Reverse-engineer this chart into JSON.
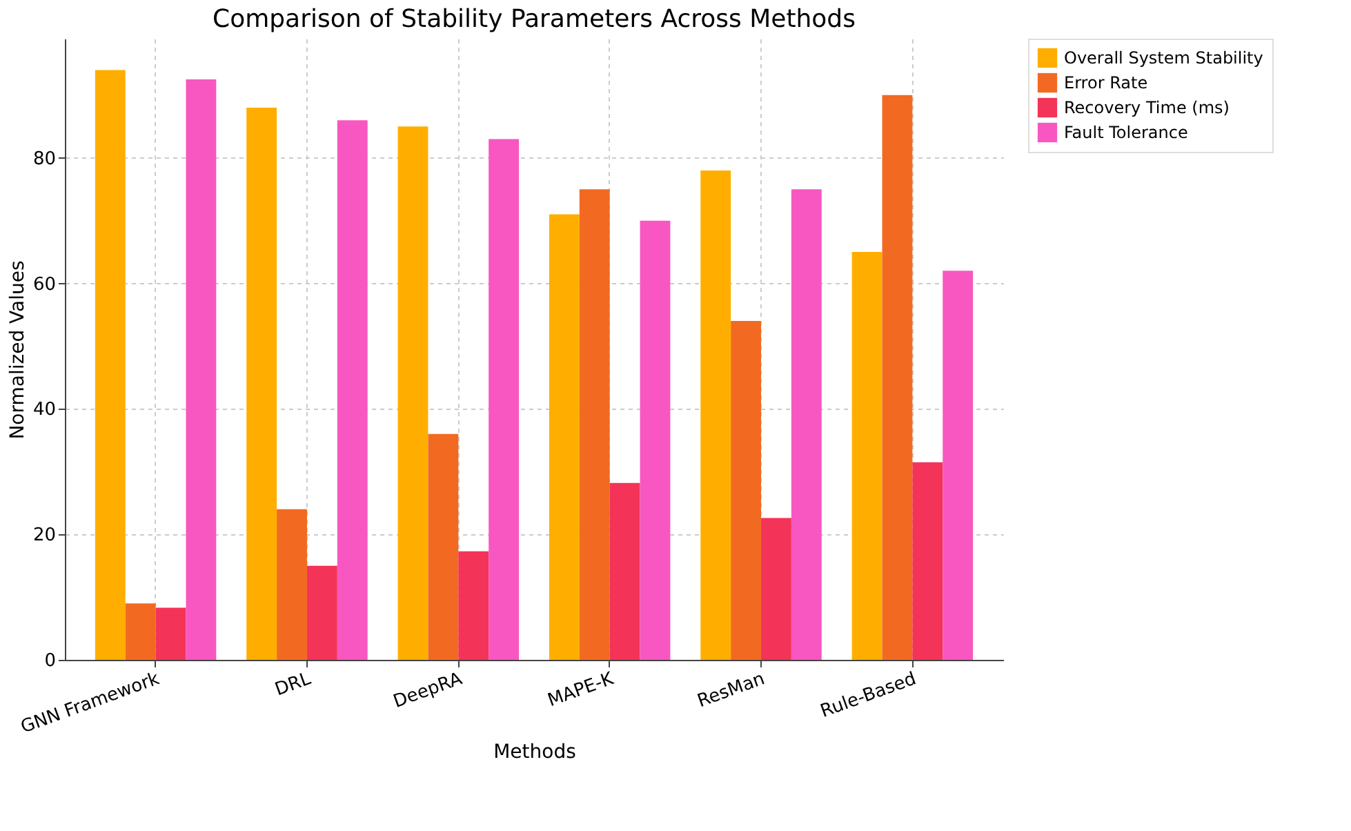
{
  "chart_data": {
    "type": "bar",
    "title": "Comparison of Stability Parameters Across Methods",
    "xlabel": "Methods",
    "ylabel": "Normalized Values",
    "categories": [
      "GNN Framework",
      "DRL",
      "DeepRA",
      "MAPE-K",
      "ResMan",
      "Rule-Based"
    ],
    "series": [
      {
        "name": "Overall System Stability",
        "color": "#ffae00",
        "values": [
          94,
          88,
          85,
          71,
          78,
          65
        ]
      },
      {
        "name": "Error Rate",
        "color": "#f26a22",
        "values": [
          9,
          24,
          36,
          75,
          54,
          90
        ]
      },
      {
        "name": "Recovery Time (ms)",
        "color": "#f43358",
        "values": [
          8.3,
          15,
          17.3,
          28.2,
          22.6,
          31.5
        ]
      },
      {
        "name": "Fault Tolerance",
        "color": "#f857c1",
        "values": [
          92.5,
          86,
          83,
          70,
          75,
          62
        ]
      }
    ],
    "ylim": [
      0,
      99
    ],
    "yticks": [
      0,
      20,
      40,
      60,
      80
    ],
    "grid": true,
    "legend": "top right"
  }
}
